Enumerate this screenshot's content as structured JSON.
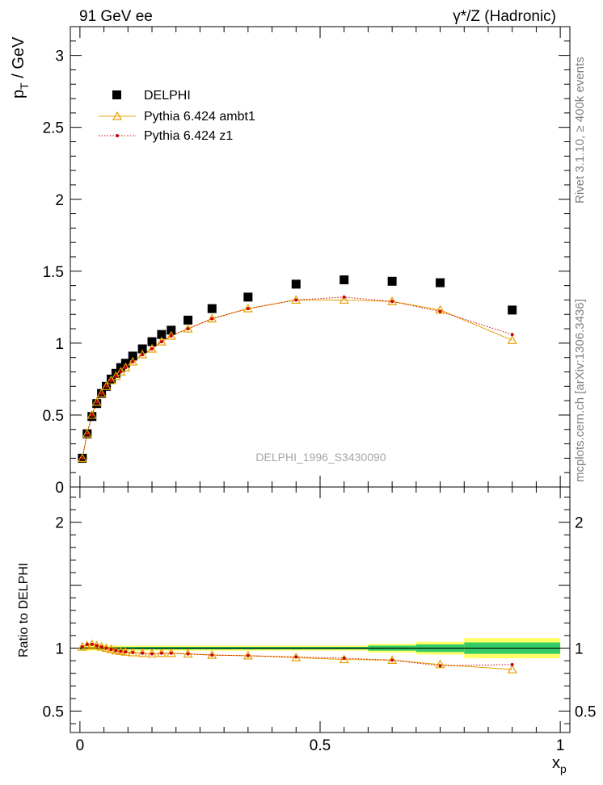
{
  "header": {
    "left": "91 GeV ee",
    "right": "γ*/Z (Hadronic)"
  },
  "side_text": {
    "top": "Rivet 3.1.10, ≥ 400k events",
    "bottom": "mcplots.cern.ch [arXiv:1306.3436]"
  },
  "analysis_label": "DELPHI_1996_S3430090",
  "axis": {
    "ylabel_main": "p",
    "ylabel_main_sub": "T",
    "ylabel_main_unit": " / GeV",
    "ylabel_ratio": "Ratio to DELPHI",
    "xlabel": "x",
    "xlabel_sub": "p"
  },
  "legend": [
    {
      "label": "DELPHI"
    },
    {
      "label": "Pythia 6.424 ambt1"
    },
    {
      "label": "Pythia 6.424 z1"
    }
  ],
  "colors": {
    "data": "#000000",
    "ambt1": "#e8a000",
    "z1": "#cc0000",
    "band_inner": "#33cc66",
    "band_outer": "#ffff66"
  },
  "chart_data": [
    {
      "type": "scatter",
      "title": "",
      "xlabel": "x_p",
      "ylabel": "p_T / GeV",
      "xlim": [
        -0.02,
        1.02
      ],
      "ylim": [
        0,
        3.2
      ],
      "xticks": [
        0,
        0.5,
        1
      ],
      "xtick_labels": [
        "0",
        "0.5",
        "1"
      ],
      "yticks": [
        0,
        0.5,
        1,
        1.5,
        2,
        2.5,
        3
      ],
      "ytick_labels": [
        "0",
        "0.5",
        "1",
        "1.5",
        "2",
        "2.5",
        "3"
      ],
      "x": [
        0.005,
        0.015,
        0.025,
        0.035,
        0.045,
        0.055,
        0.065,
        0.075,
        0.085,
        0.095,
        0.11,
        0.13,
        0.15,
        0.17,
        0.19,
        0.225,
        0.275,
        0.35,
        0.45,
        0.55,
        0.65,
        0.75,
        0.9
      ],
      "series": [
        {
          "name": "DELPHI",
          "values": [
            0.2,
            0.37,
            0.49,
            0.58,
            0.65,
            0.7,
            0.75,
            0.79,
            0.83,
            0.86,
            0.91,
            0.96,
            1.01,
            1.06,
            1.09,
            1.16,
            1.24,
            1.32,
            1.41,
            1.44,
            1.43,
            1.42,
            1.23
          ]
        },
        {
          "name": "Pythia 6.424 ambt1",
          "values": [
            0.2,
            0.37,
            0.5,
            0.59,
            0.65,
            0.7,
            0.74,
            0.77,
            0.8,
            0.83,
            0.87,
            0.92,
            0.96,
            1.01,
            1.05,
            1.1,
            1.17,
            1.24,
            1.3,
            1.3,
            1.29,
            1.23,
            1.02
          ]
        },
        {
          "name": "Pythia 6.424 z1",
          "values": [
            0.2,
            0.37,
            0.5,
            0.59,
            0.65,
            0.7,
            0.74,
            0.77,
            0.8,
            0.83,
            0.87,
            0.92,
            0.96,
            1.01,
            1.05,
            1.1,
            1.17,
            1.24,
            1.3,
            1.32,
            1.29,
            1.22,
            1.06
          ]
        }
      ]
    },
    {
      "type": "line",
      "title": "",
      "xlabel": "x_p",
      "ylabel": "Ratio to DELPHI",
      "xlim": [
        -0.02,
        1.02
      ],
      "ylim": [
        0.33,
        2.28
      ],
      "yticks": [
        0.5,
        1,
        2
      ],
      "ytick_labels": [
        "0.5",
        "1",
        "2"
      ],
      "x": [
        0.005,
        0.015,
        0.025,
        0.035,
        0.045,
        0.055,
        0.065,
        0.075,
        0.085,
        0.095,
        0.11,
        0.13,
        0.15,
        0.17,
        0.19,
        0.225,
        0.275,
        0.35,
        0.45,
        0.55,
        0.65,
        0.75,
        0.9
      ],
      "band_edges": [
        0.0,
        0.6,
        0.7,
        0.8,
        1.0
      ],
      "band_inner_halfwidth": [
        0.01,
        0.02,
        0.03,
        0.045
      ],
      "band_outer_halfwidth": [
        0.02,
        0.035,
        0.05,
        0.08
      ],
      "series": [
        {
          "name": "Pythia 6.424 ambt1",
          "values": [
            1.01,
            1.02,
            1.03,
            1.02,
            1.01,
            1.0,
            0.99,
            0.98,
            0.975,
            0.97,
            0.965,
            0.96,
            0.955,
            0.96,
            0.96,
            0.955,
            0.945,
            0.94,
            0.925,
            0.91,
            0.905,
            0.87,
            0.83
          ]
        },
        {
          "name": "Pythia 6.424 z1",
          "values": [
            1.01,
            1.03,
            1.03,
            1.02,
            1.01,
            1.0,
            0.99,
            0.98,
            0.975,
            0.97,
            0.965,
            0.96,
            0.955,
            0.96,
            0.96,
            0.955,
            0.945,
            0.94,
            0.93,
            0.92,
            0.905,
            0.86,
            0.87
          ]
        }
      ]
    }
  ]
}
